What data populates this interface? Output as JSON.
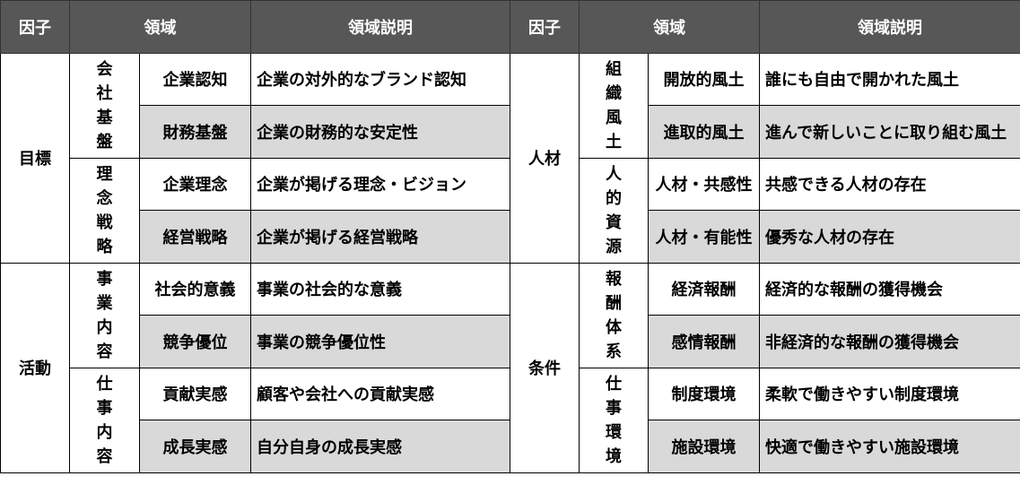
{
  "tables": [
    {
      "headers": {
        "factor": "因子",
        "area": "領域",
        "desc": "領域説明"
      },
      "factors": [
        {
          "label": "目標",
          "groups": [
            {
              "label": "会社基盤",
              "items": [
                {
                  "name": "企業認知",
                  "desc": "企業の対外的なブランド認知"
                },
                {
                  "name": "財務基盤",
                  "desc": "企業の財務的な安定性"
                }
              ]
            },
            {
              "label": "理念戦略",
              "items": [
                {
                  "name": "企業理念",
                  "desc": "企業が掲げる理念・ビジョン"
                },
                {
                  "name": "経営戦略",
                  "desc": "企業が掲げる経営戦略"
                }
              ]
            }
          ]
        },
        {
          "label": "活動",
          "groups": [
            {
              "label": "事業内容",
              "items": [
                {
                  "name": "社会的意義",
                  "desc": "事業の社会的な意義"
                },
                {
                  "name": "競争優位",
                  "desc": "事業の競争優位性"
                }
              ]
            },
            {
              "label": "仕事内容",
              "items": [
                {
                  "name": "貢献実感",
                  "desc": "顧客や会社への貢献実感"
                },
                {
                  "name": "成長実感",
                  "desc": "自分自身の成長実感"
                }
              ]
            }
          ]
        }
      ]
    },
    {
      "headers": {
        "factor": "因子",
        "area": "領域",
        "desc": "領域説明"
      },
      "factors": [
        {
          "label": "人材",
          "groups": [
            {
              "label": "組織風土",
              "items": [
                {
                  "name": "開放的風土",
                  "desc": "誰にも自由で開かれた風土"
                },
                {
                  "name": "進取的風土",
                  "desc": "進んで新しいことに取り組む風土"
                }
              ]
            },
            {
              "label": "人的資源",
              "items": [
                {
                  "name": "人材・共感性",
                  "desc": "共感できる人材の存在"
                },
                {
                  "name": "人材・有能性",
                  "desc": "優秀な人材の存在"
                }
              ]
            }
          ]
        },
        {
          "label": "条件",
          "groups": [
            {
              "label": "報酬体系",
              "items": [
                {
                  "name": "経済報酬",
                  "desc": "経済的な報酬の獲得機会"
                },
                {
                  "name": "感情報酬",
                  "desc": "非経済的な報酬の獲得機会"
                }
              ]
            },
            {
              "label": "仕事環境",
              "items": [
                {
                  "name": "制度環境",
                  "desc": "柔軟で働きやすい制度環境"
                },
                {
                  "name": "施設環境",
                  "desc": "快適で働きやすい施設環境"
                }
              ]
            }
          ]
        }
      ]
    }
  ],
  "colors": {
    "header_bg": "#575757",
    "header_text": "#ffffff",
    "shaded_row": "#d9d9d9",
    "border": "#000000"
  }
}
